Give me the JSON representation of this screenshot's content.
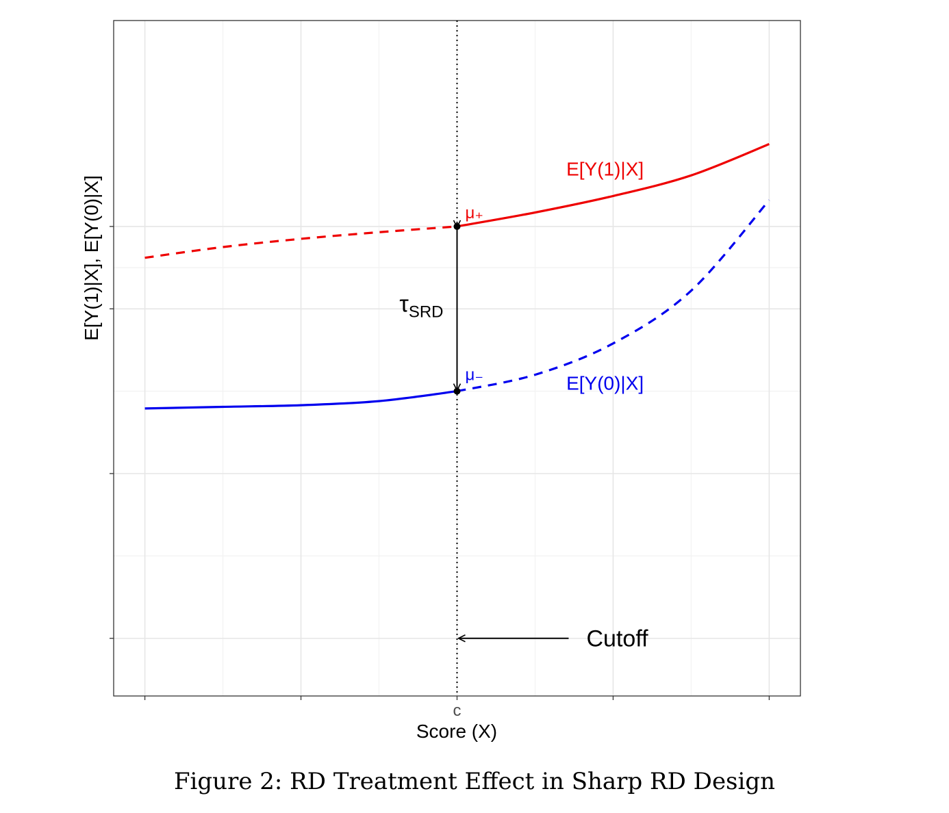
{
  "chart_data": {
    "type": "line",
    "title": "",
    "xlabel": "Score (X)",
    "ylabel": "E[Y(1)|X], E[Y(0)|X]",
    "x_tick_labels": [
      {
        "x": -1.0,
        "label": ""
      },
      {
        "x": -0.5,
        "label": ""
      },
      {
        "x": 0.0,
        "label": "c"
      },
      {
        "x": 0.5,
        "label": ""
      },
      {
        "x": 1.0,
        "label": ""
      }
    ],
    "y_ticks": [
      1,
      3,
      5,
      6
    ],
    "xlim": [
      -1.1,
      1.1
    ],
    "ylim": [
      0.3,
      8.5
    ],
    "grid": true,
    "cutoff": 0,
    "series": [
      {
        "name": "E[Y(1)|X]",
        "color": "#ee0000",
        "segments": [
          {
            "style": "dashed",
            "x": [
              -1.0,
              -0.75,
              -0.5,
              -0.25,
              0.0
            ],
            "y": [
              5.62,
              5.75,
              5.85,
              5.93,
              6.0
            ]
          },
          {
            "style": "solid",
            "x": [
              0.0,
              0.25,
              0.5,
              0.75,
              1.0
            ],
            "y": [
              6.0,
              6.17,
              6.37,
              6.62,
              7.0
            ]
          }
        ]
      },
      {
        "name": "E[Y(0)|X]",
        "color": "#0000ee",
        "segments": [
          {
            "style": "solid",
            "x": [
              -1.0,
              -0.75,
              -0.5,
              -0.25,
              0.0
            ],
            "y": [
              3.79,
              3.81,
              3.83,
              3.88,
              4.0
            ]
          },
          {
            "style": "dashed",
            "x": [
              0.0,
              0.25,
              0.5,
              0.75,
              1.0
            ],
            "y": [
              4.0,
              4.2,
              4.58,
              5.22,
              6.32
            ]
          }
        ]
      }
    ],
    "annotations": {
      "y1_label": "E[Y(1)|X]",
      "y0_label": "E[Y(0)|X]",
      "mu_plus": "μ₊",
      "mu_minus": "μ₋",
      "tau_main": "τ",
      "tau_sub": "SRD",
      "cutoff_label": "Cutoff"
    }
  },
  "caption": "Figure 2: RD Treatment Effect in Sharp RD Design"
}
